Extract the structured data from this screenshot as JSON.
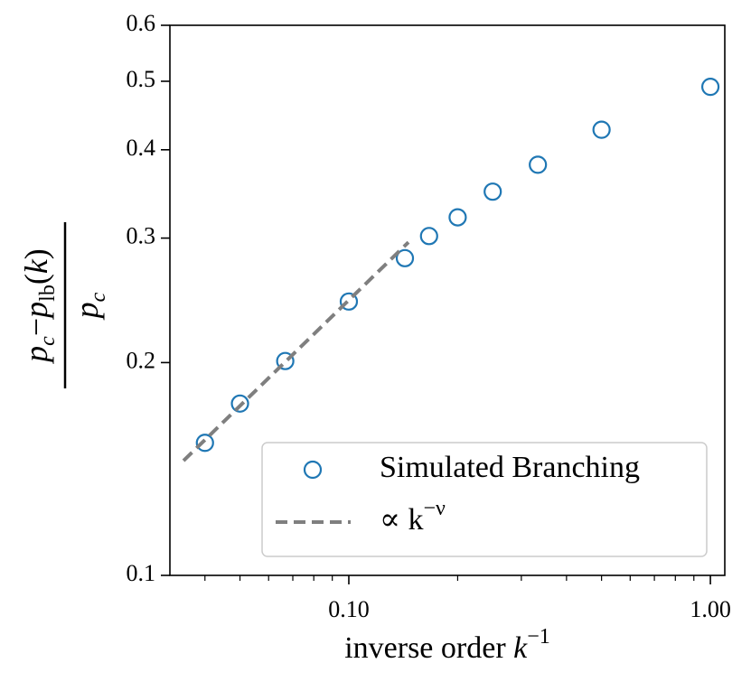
{
  "chart_data": {
    "type": "scatter",
    "xlabel": [
      "inverse order ",
      "k",
      "−1"
    ],
    "ylabel": {
      "numerator": [
        "p",
        "c",
        "−",
        "p",
        "lb",
        "(",
        "k",
        ")"
      ],
      "denominator": [
        "p",
        "c"
      ]
    },
    "xscale": "log",
    "yscale": "log",
    "xlim": [
      0.032,
      1.096
    ],
    "ylim": [
      0.1,
      0.6
    ],
    "xticks": [
      {
        "value": 0.1,
        "label": "0.10"
      },
      {
        "value": 1,
        "label": "1.00"
      }
    ],
    "xminorticks": [
      0.04,
      0.05,
      0.06,
      0.07,
      0.08,
      0.09,
      0.2,
      0.3,
      0.4,
      0.5,
      0.6,
      0.7,
      0.8,
      0.9
    ],
    "yticks": [
      0.1,
      0.2,
      0.3,
      0.4,
      0.5,
      0.6
    ],
    "legend": "lower right",
    "series": [
      {
        "name": "Simulated Branching",
        "type": "scatter",
        "color": "#1f77b4",
        "x": [
          1,
          0.5,
          0.3333,
          0.25,
          0.2,
          0.1667,
          0.1429,
          0.1,
          0.0667,
          0.05,
          0.04
        ],
        "values": [
          0.491,
          0.427,
          0.381,
          0.349,
          0.321,
          0.302,
          0.281,
          0.244,
          0.201,
          0.175,
          0.154
        ]
      },
      {
        "name": "∝ k",
        "name_superscript": "−ν",
        "type": "line",
        "dashed": true,
        "color": "#7f7f7f",
        "x": [
          0.0349,
          0.1462
        ],
        "values": [
          0.1453,
          0.296
        ]
      }
    ]
  }
}
